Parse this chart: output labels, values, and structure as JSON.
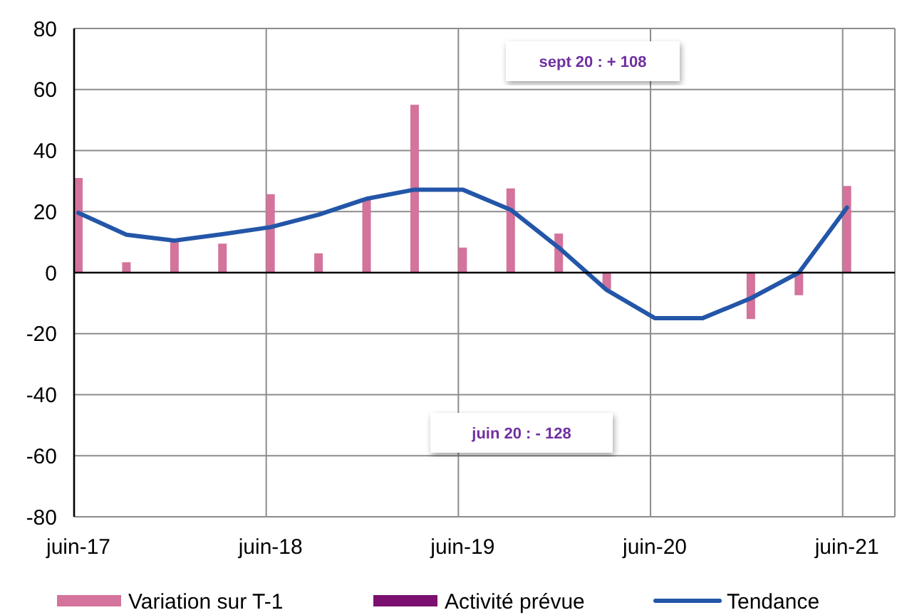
{
  "chart_data": {
    "type": "bar",
    "categories": [
      "juin-17",
      null,
      null,
      null,
      "juin-18",
      null,
      null,
      null,
      "juin-19",
      null,
      null,
      null,
      "juin-20",
      null,
      null,
      null,
      "juin-21"
    ],
    "series": [
      {
        "name": "Variation sur T-1",
        "color": "#d4739b",
        "values": [
          31,
          3.4,
          10,
          9.5,
          25.7,
          6.3,
          23.8,
          55,
          8.2,
          27.6,
          12.8,
          -5.5,
          null,
          null,
          -15.2,
          -7.4,
          28.4
        ]
      },
      {
        "name": "Activité prévue",
        "color": "#7b1070",
        "values": [
          null,
          null,
          null,
          null,
          null,
          null,
          null,
          null,
          null,
          null,
          null,
          null,
          null,
          null,
          null,
          null,
          null
        ]
      },
      {
        "name": "Tendance",
        "type": "line",
        "color": "#2356a8",
        "values": [
          19.6,
          12.4,
          10.5,
          12.6,
          14.9,
          19,
          24.2,
          27.2,
          27.2,
          20.6,
          8.2,
          -5.7,
          -14.9,
          -14.9,
          -8.4,
          0,
          21.3
        ]
      }
    ],
    "ylim": [
      -80,
      80
    ],
    "yticks": [
      -80,
      -60,
      -40,
      -20,
      0,
      20,
      40,
      60,
      80
    ],
    "grid": true,
    "legend": "bottom",
    "line_style": "solid",
    "marker": "none",
    "annotations": [
      "sept 20 : + 108",
      "juin 20 : - 128"
    ]
  }
}
